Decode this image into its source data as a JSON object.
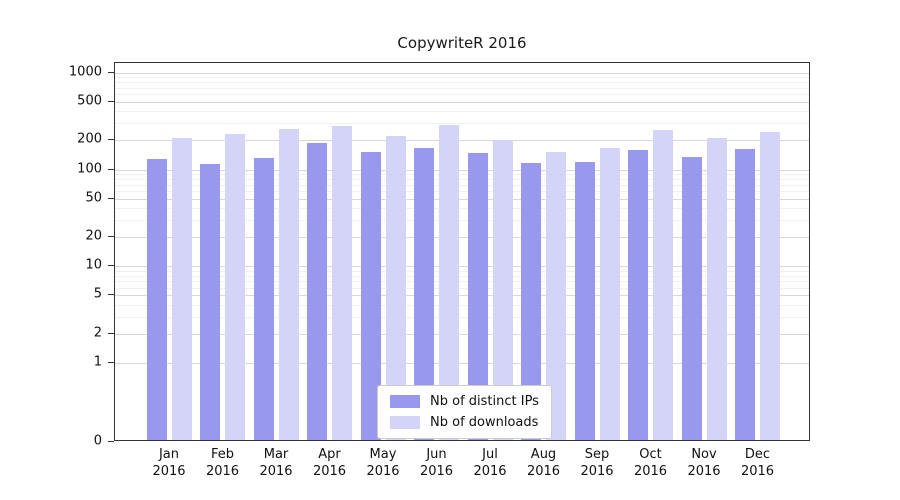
{
  "colors": {
    "ips_bar": "#9898ec",
    "downloads_bar": "#d4d4f8",
    "axis": "#333333",
    "grid_major": "#d8d8d8",
    "grid_minor": "#f0f0f0",
    "text": "#111111"
  },
  "chart_data": {
    "type": "bar",
    "title": "CopywriteR 2016",
    "categories": [
      "Jan",
      "Feb",
      "Mar",
      "Apr",
      "May",
      "Jun",
      "Jul",
      "Aug",
      "Sep",
      "Oct",
      "Nov",
      "Dec"
    ],
    "category_year": "2016",
    "series": [
      {
        "name": "Nb of distinct IPs",
        "values": [
          130,
          113,
          133,
          190,
          152,
          168,
          148,
          118,
          121,
          158,
          136,
          163
        ]
      },
      {
        "name": "Nb of downloads",
        "values": [
          210,
          232,
          262,
          285,
          222,
          288,
          200,
          153,
          168,
          255,
          213,
          245
        ]
      }
    ],
    "yscale": "symlog",
    "yticks": [
      0,
      1,
      2,
      5,
      10,
      20,
      50,
      100,
      200,
      500,
      1000
    ],
    "ylim": [
      0,
      1000
    ],
    "xlabel": "",
    "ylabel": "",
    "grid": true,
    "legend_position": "bottom-center"
  }
}
